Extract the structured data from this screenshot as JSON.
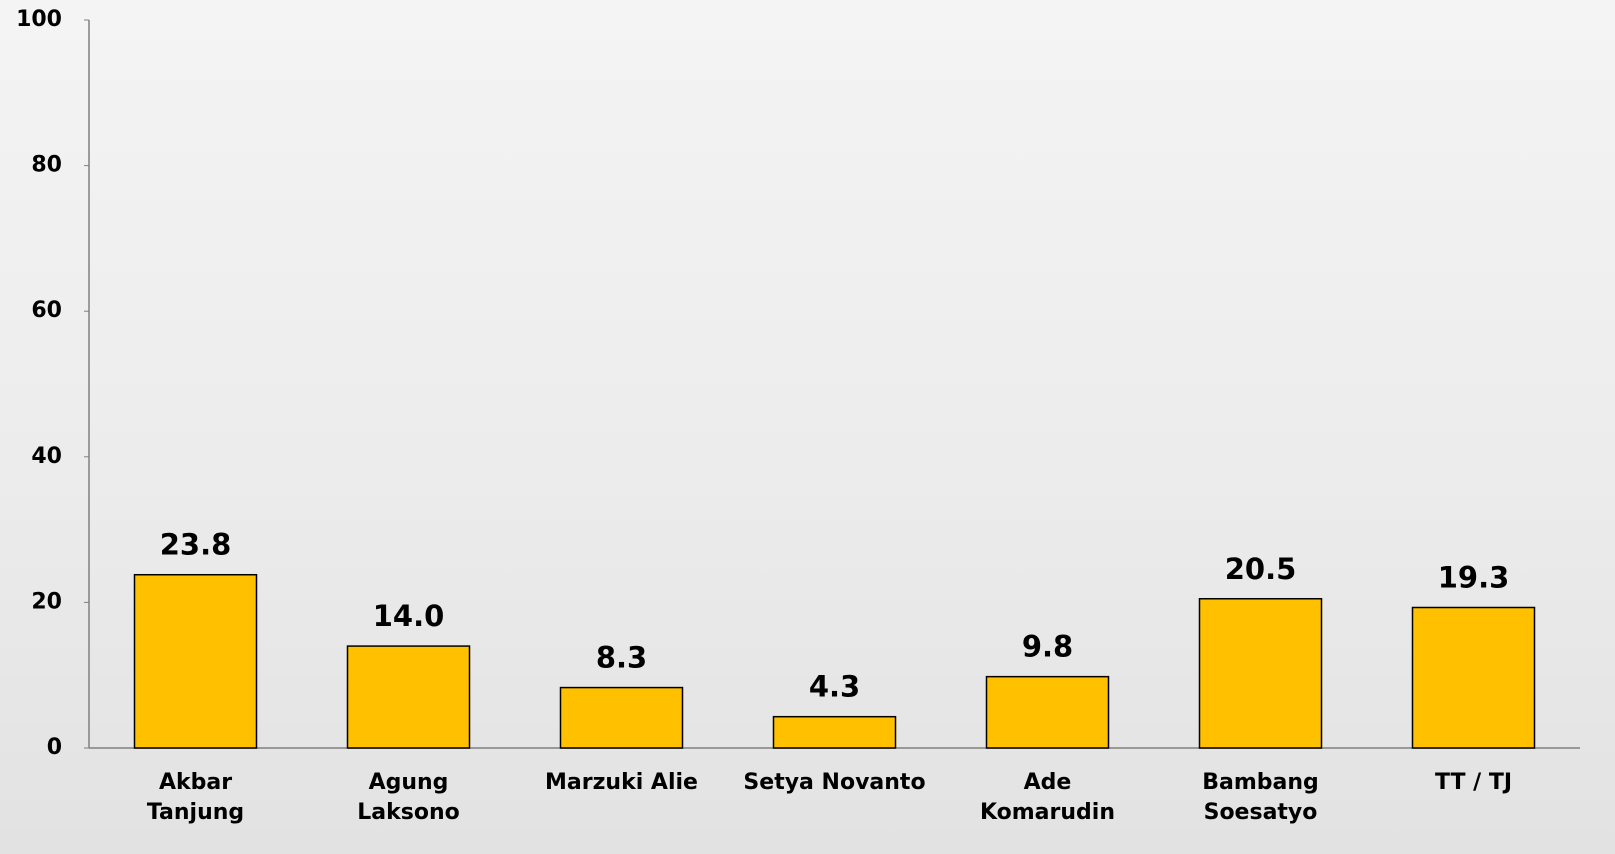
{
  "chart_data": {
    "type": "bar",
    "categories": [
      "Akbar\nTanjung",
      "Agung\nLaksono",
      "Marzuki Alie",
      "Setya Novanto",
      "Ade\nKomarudin",
      "Bambang\nSoesatyo",
      "TT / TJ"
    ],
    "values": [
      23.8,
      14.0,
      8.3,
      4.3,
      9.8,
      20.5,
      19.3
    ],
    "value_labels": [
      "23.8",
      "14.0",
      "8.3",
      "4.3",
      "9.8",
      "20.5",
      "19.3"
    ],
    "color": "#ffc000",
    "ylim": [
      0,
      100
    ],
    "yticks": [
      0,
      20,
      40,
      60,
      80,
      100
    ],
    "grid": false
  }
}
